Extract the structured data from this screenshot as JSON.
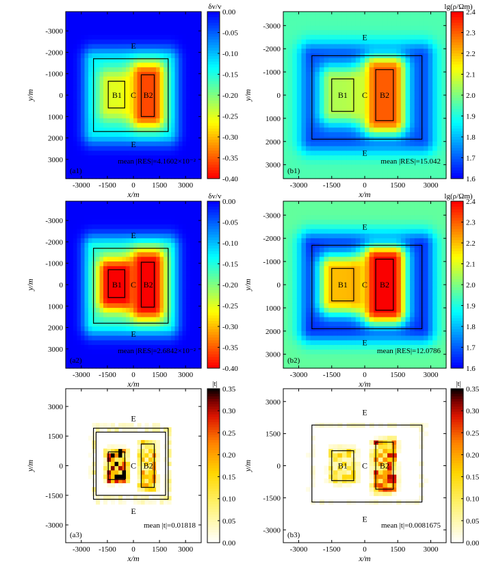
{
  "chart_data": [
    {
      "id": "a1",
      "type": "heatmap",
      "panel_label": "(a1)",
      "xlabel": "x/m",
      "ylabel": "y/m",
      "xticks": [
        "-3000",
        "-1500",
        "0",
        "1500",
        "3000"
      ],
      "xtick_values": [
        -3000,
        -1500,
        0,
        1500,
        3000
      ],
      "yticks": [
        "-3000",
        "-2000",
        "-1000",
        "0",
        "1000",
        "2000",
        "3000"
      ],
      "ytick_values": [
        -3000,
        -2000,
        -1000,
        0,
        1000,
        2000,
        3000
      ],
      "xlim": [
        -3900,
        3900
      ],
      "ylim": [
        -3900,
        3900
      ],
      "y_axis": "down",
      "colormap": "jet",
      "reverse": true,
      "colorbar": {
        "title": "δv/v",
        "range": [
          -0.4,
          0.0
        ],
        "ticks": [
          "0.00",
          "-0.05",
          "-0.10",
          "-0.15",
          "-0.20",
          "-0.25",
          "-0.30",
          "-0.35",
          "-0.40"
        ]
      },
      "background": 0.0,
      "regions": [
        {
          "label": "C",
          "x": [
            -2300,
            2000
          ],
          "y": [
            -1600,
            1700
          ],
          "value": -0.13
        },
        {
          "label": "B1",
          "x": [
            -1450,
            -500
          ],
          "y": [
            -650,
            650
          ],
          "value": -0.25
        },
        {
          "label": "B2",
          "x": [
            450,
            1200
          ],
          "y": [
            -950,
            950
          ],
          "value": -0.36
        }
      ],
      "rects": [
        {
          "x": [
            -2300,
            2000
          ],
          "y": [
            -1700,
            1700
          ]
        },
        {
          "x": [
            -1450,
            -500
          ],
          "y": [
            -650,
            600
          ]
        },
        {
          "x": [
            450,
            1200
          ],
          "y": [
            -950,
            1000
          ]
        }
      ],
      "labels": [
        {
          "text": "E",
          "x": 0,
          "y": -2300
        },
        {
          "text": "E",
          "x": 0,
          "y": 2300
        },
        {
          "text": "B1",
          "x": -950,
          "y": 0
        },
        {
          "text": "C",
          "x": 0,
          "y": 0
        },
        {
          "text": "B2",
          "x": 850,
          "y": 0
        }
      ],
      "annotation": "mean |RES|=4.1602×10⁻²"
    },
    {
      "id": "b1",
      "type": "heatmap",
      "panel_label": "(b1)",
      "xlabel": "x/m",
      "ylabel": "y/m",
      "xticks": [
        "-3000",
        "-1500",
        "0",
        "1500",
        "3000"
      ],
      "xtick_values": [
        -3000,
        -1500,
        0,
        1500,
        3000
      ],
      "yticks": [
        "-3000",
        "-2000",
        "-1000",
        "0",
        "1000",
        "2000",
        "3000"
      ],
      "ytick_values": [
        -3000,
        -2000,
        -1000,
        0,
        1000,
        2000,
        3000
      ],
      "xlim": [
        -3700,
        3700
      ],
      "ylim": [
        -3600,
        3600
      ],
      "y_axis": "down",
      "colormap": "jet",
      "reverse": false,
      "colorbar": {
        "title": "lg(ρ/Ωm)",
        "range": [
          1.6,
          2.4
        ],
        "ticks": [
          "2.4",
          "2.3",
          "2.2",
          "2.1",
          "2.0",
          "1.9",
          "1.8",
          "1.7",
          "1.6"
        ]
      },
      "background": 1.95,
      "regions": [
        {
          "label": "C",
          "x": [
            -2400,
            2600
          ],
          "y": [
            -1700,
            1900
          ],
          "value": 1.68
        },
        {
          "label": "B1",
          "x": [
            -1500,
            -500
          ],
          "y": [
            -700,
            700
          ],
          "value": 2.05
        },
        {
          "label": "B2",
          "x": [
            500,
            1300
          ],
          "y": [
            -1100,
            1100
          ],
          "value": 2.3
        }
      ],
      "rects": [
        {
          "x": [
            -2400,
            2600
          ],
          "y": [
            -1700,
            1900
          ]
        },
        {
          "x": [
            -1500,
            -500
          ],
          "y": [
            -700,
            700
          ]
        },
        {
          "x": [
            500,
            1300
          ],
          "y": [
            -1100,
            1100
          ]
        }
      ],
      "labels": [
        {
          "text": "E",
          "x": 0,
          "y": -2500
        },
        {
          "text": "E",
          "x": 0,
          "y": 2500
        },
        {
          "text": "B1",
          "x": -1000,
          "y": 0
        },
        {
          "text": "C",
          "x": 0,
          "y": 0
        },
        {
          "text": "B2",
          "x": 900,
          "y": 0
        }
      ],
      "annotation": "mean |RES|=15.042"
    },
    {
      "id": "a2",
      "type": "heatmap",
      "panel_label": "(a2)",
      "xlabel": "x/m",
      "ylabel": "y/m",
      "xticks": [
        "-3000",
        "-1500",
        "0",
        "1500",
        "3000"
      ],
      "xtick_values": [
        -3000,
        -1500,
        0,
        1500,
        3000
      ],
      "yticks": [
        "-3000",
        "-2000",
        "-1000",
        "0",
        "1000",
        "2000",
        "3000"
      ],
      "ytick_values": [
        -3000,
        -2000,
        -1000,
        0,
        1000,
        2000,
        3000
      ],
      "xlim": [
        -3900,
        3900
      ],
      "ylim": [
        -3900,
        3900
      ],
      "y_axis": "down",
      "colormap": "jet",
      "reverse": true,
      "colorbar": {
        "title": "δv/v",
        "range": [
          -0.4,
          0.0
        ],
        "ticks": [
          "0.00",
          "-0.05",
          "-0.10",
          "-0.15",
          "-0.20",
          "-0.25",
          "-0.30",
          "-0.35",
          "-0.40"
        ]
      },
      "background": 0.0,
      "regions": [
        {
          "label": "C",
          "x": [
            -2300,
            2000
          ],
          "y": [
            -1700,
            1800
          ],
          "value": -0.15
        },
        {
          "label": "B1",
          "x": [
            -1450,
            -500
          ],
          "y": [
            -650,
            650
          ],
          "value": -0.4
        },
        {
          "label": "B2",
          "x": [
            450,
            1200
          ],
          "y": [
            -1050,
            1050
          ],
          "value": -0.4
        }
      ],
      "rects": [
        {
          "x": [
            -2300,
            2000
          ],
          "y": [
            -1700,
            1800
          ]
        },
        {
          "x": [
            -1450,
            -500
          ],
          "y": [
            -700,
            600
          ]
        },
        {
          "x": [
            450,
            1200
          ],
          "y": [
            -1050,
            1050
          ]
        }
      ],
      "labels": [
        {
          "text": "E",
          "x": 0,
          "y": -2300
        },
        {
          "text": "E",
          "x": 0,
          "y": 2300
        },
        {
          "text": "B1",
          "x": -950,
          "y": 0
        },
        {
          "text": "C",
          "x": 0,
          "y": 0
        },
        {
          "text": "B2",
          "x": 850,
          "y": 0
        }
      ],
      "annotation": "mean |RES|=2.6842×10⁻²"
    },
    {
      "id": "b2",
      "type": "heatmap",
      "panel_label": "(b2)",
      "xlabel": "x/m",
      "ylabel": "y/m",
      "xticks": [
        "-3000",
        "-1500",
        "0",
        "1500",
        "3000"
      ],
      "xtick_values": [
        -3000,
        -1500,
        0,
        1500,
        3000
      ],
      "yticks": [
        "-3000",
        "-2000",
        "-1000",
        "0",
        "1000",
        "2000",
        "3000"
      ],
      "ytick_values": [
        -3000,
        -2000,
        -1000,
        0,
        1000,
        2000,
        3000
      ],
      "xlim": [
        -3700,
        3700
      ],
      "ylim": [
        -3600,
        3600
      ],
      "y_axis": "down",
      "colormap": "jet",
      "reverse": false,
      "colorbar": {
        "title": "lg(ρ/Ωm)",
        "range": [
          1.6,
          2.4
        ],
        "ticks": [
          "2.4",
          "2.3",
          "2.2",
          "2.1",
          "2.0",
          "1.9",
          "1.8",
          "1.7",
          "1.6"
        ]
      },
      "background": 1.97,
      "regions": [
        {
          "label": "C",
          "x": [
            -2400,
            2600
          ],
          "y": [
            -1700,
            1900
          ],
          "value": 1.65
        },
        {
          "label": "B1",
          "x": [
            -1500,
            -500
          ],
          "y": [
            -700,
            700
          ],
          "value": 2.2
        },
        {
          "label": "B2",
          "x": [
            500,
            1300
          ],
          "y": [
            -1100,
            1100
          ],
          "value": 2.4
        }
      ],
      "rects": [
        {
          "x": [
            -2400,
            2600
          ],
          "y": [
            -1700,
            1900
          ]
        },
        {
          "x": [
            -1500,
            -500
          ],
          "y": [
            -700,
            700
          ]
        },
        {
          "x": [
            500,
            1300
          ],
          "y": [
            -1100,
            1100
          ]
        }
      ],
      "labels": [
        {
          "text": "E",
          "x": 0,
          "y": -2500
        },
        {
          "text": "E",
          "x": 0,
          "y": 2500
        },
        {
          "text": "B1",
          "x": -1000,
          "y": 0
        },
        {
          "text": "C",
          "x": 0,
          "y": 0
        },
        {
          "text": "B2",
          "x": 900,
          "y": 0
        }
      ],
      "annotation": "mean |RES|=12.0786"
    },
    {
      "id": "a3",
      "type": "heatmap",
      "panel_label": "(a3)",
      "xlabel": "x/m",
      "ylabel": "y/m",
      "xticks": [
        "-3000",
        "-1500",
        "0",
        "1500",
        "3000"
      ],
      "xtick_values": [
        -3000,
        -1500,
        0,
        1500,
        3000
      ],
      "yticks": [
        "-3000",
        "-1500",
        "0",
        "1500",
        "3000"
      ],
      "ytick_values": [
        -3000,
        -1500,
        0,
        1500,
        3000
      ],
      "xlim": [
        -3900,
        3900
      ],
      "ylim": [
        -3900,
        3900
      ],
      "y_axis": "up",
      "colormap": "hot",
      "reverse": true,
      "colorbar": {
        "title": "|t|",
        "range": [
          0.0,
          0.35
        ],
        "ticks": [
          "0.35",
          "0.30",
          "0.25",
          "0.20",
          "0.15",
          "0.10",
          "0.05",
          "0.00"
        ]
      },
      "background": 0.0,
      "regions": [
        {
          "label": "C",
          "kind": "frame",
          "x": [
            -2300,
            2000
          ],
          "y": [
            -1700,
            1900
          ],
          "value": 0.06
        },
        {
          "label": "B1",
          "x": [
            -1450,
            -500
          ],
          "y": [
            -700,
            700
          ],
          "value": 0.25
        },
        {
          "label": "B2",
          "x": [
            450,
            1200
          ],
          "y": [
            -1100,
            1100
          ],
          "value": 0.14
        }
      ],
      "rects": [
        {
          "x": [
            -2300,
            2000
          ],
          "y": [
            -1700,
            1900
          ]
        },
        {
          "x": [
            -2150,
            1850
          ],
          "y": [
            -1500,
            1700
          ]
        },
        {
          "x": [
            -1450,
            -500
          ],
          "y": [
            -700,
            700
          ]
        },
        {
          "x": [
            450,
            1200
          ],
          "y": [
            -1100,
            1100
          ]
        }
      ],
      "labels": [
        {
          "text": "E",
          "x": 0,
          "y": 2400
        },
        {
          "text": "E",
          "x": 0,
          "y": -2300
        },
        {
          "text": "C",
          "x": 0,
          "y": 0
        },
        {
          "text": "B2",
          "x": 850,
          "y": 0
        }
      ],
      "annotation": "mean |t|=0.01818"
    },
    {
      "id": "b3",
      "type": "heatmap",
      "panel_label": "(b3)",
      "xlabel": "x/m",
      "ylabel": "y/m",
      "xticks": [
        "-3000",
        "-1500",
        "0",
        "1500",
        "3000"
      ],
      "xtick_values": [
        -3000,
        -1500,
        0,
        1500,
        3000
      ],
      "yticks": [
        "-3000",
        "-1500",
        "0",
        "1500",
        "3000"
      ],
      "ytick_values": [
        -3000,
        -1500,
        0,
        1500,
        3000
      ],
      "xlim": [
        -3700,
        3700
      ],
      "ylim": [
        -3600,
        3600
      ],
      "y_axis": "up",
      "colormap": "hot",
      "reverse": true,
      "colorbar": {
        "title": "|t|",
        "range": [
          0.0,
          0.35
        ],
        "ticks": [
          "0.35",
          "0.30",
          "0.25",
          "0.20",
          "0.15",
          "0.10",
          "0.05",
          "0.00"
        ]
      },
      "background": 0.0,
      "regions": [
        {
          "label": "C",
          "kind": "frame",
          "x": [
            -2400,
            2600
          ],
          "y": [
            -1700,
            1900
          ],
          "value": 0.03
        },
        {
          "label": "B1",
          "x": [
            -1500,
            -500
          ],
          "y": [
            -700,
            700
          ],
          "value": 0.1
        },
        {
          "label": "B2",
          "x": [
            500,
            1300
          ],
          "y": [
            -1100,
            1100
          ],
          "value": 0.18
        }
      ],
      "rects": [
        {
          "x": [
            -2400,
            2600
          ],
          "y": [
            -1700,
            1900
          ]
        },
        {
          "x": [
            -1500,
            -500
          ],
          "y": [
            -700,
            700
          ]
        },
        {
          "x": [
            500,
            1300
          ],
          "y": [
            -1100,
            1100
          ]
        }
      ],
      "labels": [
        {
          "text": "E",
          "x": 0,
          "y": 2500
        },
        {
          "text": "E",
          "x": 0,
          "y": -2500
        },
        {
          "text": "B1",
          "x": -1000,
          "y": 0
        },
        {
          "text": "C",
          "x": 0,
          "y": 0
        },
        {
          "text": "B2",
          "x": 900,
          "y": 0
        }
      ],
      "annotation": "mean |t|=0.0081675"
    }
  ]
}
